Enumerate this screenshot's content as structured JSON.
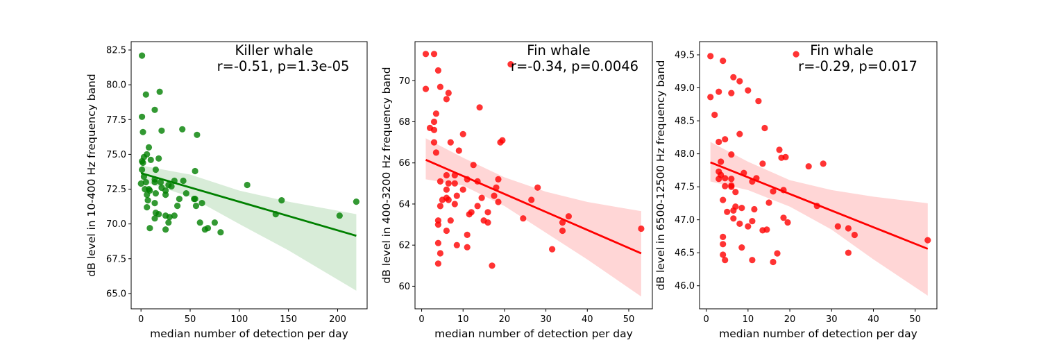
{
  "chart_data": [
    {
      "type": "scatter",
      "title": "Killer whale",
      "annotation": [
        "Killer whale",
        "r=-0.51, p=1.3e-05"
      ],
      "xlabel": "median number of detection per day",
      "ylabel": "dB level in 10-400 Hz frequency band",
      "xlim": [
        -10,
        230
      ],
      "ylim": [
        63.9,
        83.1
      ],
      "xticks": [
        0,
        50,
        100,
        150,
        200
      ],
      "xtick_labels": [
        "0",
        "50",
        "100",
        "150",
        "200"
      ],
      "yticks": [
        65.0,
        67.5,
        70.0,
        72.5,
        75.0,
        77.5,
        80.0,
        82.5
      ],
      "ytick_labels": [
        "65.0",
        "67.5",
        "70.0",
        "72.5",
        "75.0",
        "77.5",
        "80.0",
        "82.5"
      ],
      "color": "#008000",
      "band_color": "#d8ecd8",
      "points": [
        [
          1,
          82.1
        ],
        [
          5,
          79.3
        ],
        [
          19,
          79.5
        ],
        [
          14,
          78.2
        ],
        [
          1,
          77.7
        ],
        [
          2,
          76.6
        ],
        [
          21,
          76.7
        ],
        [
          42,
          76.8
        ],
        [
          57,
          76.4
        ],
        [
          8,
          75.5
        ],
        [
          6,
          75.0
        ],
        [
          3,
          74.8
        ],
        [
          1,
          74.5
        ],
        [
          2,
          74.4
        ],
        [
          10,
          74.6
        ],
        [
          18,
          74.7
        ],
        [
          15,
          73.9
        ],
        [
          1,
          73.9
        ],
        [
          55,
          73.8
        ],
        [
          3,
          73.4
        ],
        [
          14,
          73.2
        ],
        [
          14,
          73.0
        ],
        [
          0,
          72.9
        ],
        [
          5,
          73.0
        ],
        [
          20,
          73.0
        ],
        [
          34,
          73.1
        ],
        [
          43,
          73.1
        ],
        [
          28,
          72.8
        ],
        [
          31,
          72.7
        ],
        [
          108,
          72.8
        ],
        [
          4,
          72.5
        ],
        [
          8,
          72.5
        ],
        [
          9,
          72.4
        ],
        [
          21,
          72.6
        ],
        [
          25,
          72.4
        ],
        [
          6,
          72.1
        ],
        [
          25,
          72.1
        ],
        [
          15,
          72.2
        ],
        [
          46,
          72.2
        ],
        [
          7,
          71.7
        ],
        [
          39,
          71.8
        ],
        [
          54,
          71.8
        ],
        [
          55,
          71.8
        ],
        [
          143,
          71.7
        ],
        [
          219,
          71.6
        ],
        [
          14,
          71.5
        ],
        [
          37,
          71.3
        ],
        [
          56,
          71.3
        ],
        [
          62,
          71.5
        ],
        [
          6,
          71.2
        ],
        [
          15,
          70.8
        ],
        [
          18,
          70.7
        ],
        [
          25,
          70.6
        ],
        [
          29,
          70.5
        ],
        [
          34,
          70.6
        ],
        [
          14,
          70.4
        ],
        [
          137,
          70.7
        ],
        [
          202,
          70.6
        ],
        [
          28,
          70.1
        ],
        [
          60,
          70.1
        ],
        [
          75,
          70.1
        ],
        [
          9,
          69.7
        ],
        [
          25,
          69.6
        ],
        [
          65,
          69.6
        ],
        [
          68,
          69.7
        ],
        [
          81,
          69.4
        ]
      ],
      "regression": {
        "x": [
          0,
          219
        ],
        "y": [
          73.65,
          69.15
        ]
      },
      "ci_band": {
        "x": [
          0,
          50,
          100,
          150,
          219
        ],
        "upper": [
          74.2,
          73.55,
          72.4,
          71.6,
          70.7
        ],
        "lower": [
          73.1,
          71.95,
          70.0,
          68.1,
          65.2
        ]
      }
    },
    {
      "type": "scatter",
      "title": "Fin whale",
      "annotation": [
        "Fin whale",
        "r=-0.34, p=0.0046"
      ],
      "xlabel": "median number of detection per day",
      "ylabel": "dB level in 400-3200 Hz frequency band",
      "xlim": [
        -1.6,
        55.7
      ],
      "ylim": [
        58.9,
        71.9
      ],
      "xticks": [
        0,
        10,
        20,
        30,
        40,
        50
      ],
      "xtick_labels": [
        "0",
        "10",
        "20",
        "30",
        "40",
        "50"
      ],
      "yticks": [
        60,
        62,
        64,
        66,
        68,
        70
      ],
      "ytick_labels": [
        "60",
        "62",
        "64",
        "66",
        "68",
        "70"
      ],
      "color": "#ff0000",
      "band_color": "#ffd6d6",
      "points": [
        [
          1,
          71.3
        ],
        [
          3,
          71.3
        ],
        [
          4,
          70.5
        ],
        [
          4.5,
          69.7
        ],
        [
          6.5,
          69.4
        ],
        [
          6,
          69.1
        ],
        [
          1,
          69.6
        ],
        [
          21.5,
          70.8
        ],
        [
          14,
          68.7
        ],
        [
          3.5,
          68.4
        ],
        [
          3,
          68.0
        ],
        [
          2,
          67.7
        ],
        [
          3,
          67.6
        ],
        [
          10,
          67.4
        ],
        [
          19,
          67.0
        ],
        [
          19.5,
          67.1
        ],
        [
          3,
          67.0
        ],
        [
          7,
          67.0
        ],
        [
          9,
          66.6
        ],
        [
          3.5,
          66.5
        ],
        [
          12.5,
          65.9
        ],
        [
          6,
          65.4
        ],
        [
          8,
          65.4
        ],
        [
          4.5,
          65.1
        ],
        [
          11,
          65.2
        ],
        [
          13.5,
          65.1
        ],
        [
          18.5,
          65.2
        ],
        [
          6.5,
          65.0
        ],
        [
          8,
          65.0
        ],
        [
          6,
          64.7
        ],
        [
          10,
          64.7
        ],
        [
          18,
          64.8
        ],
        [
          28,
          64.8
        ],
        [
          6,
          64.3
        ],
        [
          5,
          64.2
        ],
        [
          6.5,
          64.2
        ],
        [
          8.5,
          64.4
        ],
        [
          14.5,
          64.3
        ],
        [
          17.5,
          64.4
        ],
        [
          26.5,
          64.2
        ],
        [
          4.5,
          63.9
        ],
        [
          8,
          64.0
        ],
        [
          13.5,
          63.9
        ],
        [
          18.5,
          64.1
        ],
        [
          11.5,
          63.5
        ],
        [
          12,
          63.6
        ],
        [
          16,
          63.6
        ],
        [
          34,
          63.1
        ],
        [
          35.5,
          63.4
        ],
        [
          4,
          63.2
        ],
        [
          4,
          63.0
        ],
        [
          7,
          63.2
        ],
        [
          15,
          63.2
        ],
        [
          16,
          63.1
        ],
        [
          24.5,
          63.3
        ],
        [
          6,
          62.7
        ],
        [
          11,
          62.5
        ],
        [
          34,
          62.7
        ],
        [
          53,
          62.8
        ],
        [
          4,
          62.1
        ],
        [
          8.5,
          62.0
        ],
        [
          11,
          61.9
        ],
        [
          31.5,
          61.8
        ],
        [
          4.5,
          61.6
        ],
        [
          4,
          61.1
        ],
        [
          17,
          61.0
        ]
      ],
      "regression": {
        "x": [
          1,
          53
        ],
        "y": [
          66.15,
          61.6
        ]
      },
      "ci_band": {
        "x": [
          1,
          10,
          20,
          30,
          40,
          53
        ],
        "upper": [
          67.2,
          66.25,
          65.3,
          64.6,
          64.1,
          63.65
        ],
        "lower": [
          65.2,
          64.9,
          63.9,
          62.6,
          61.3,
          59.5
        ]
      }
    },
    {
      "type": "scatter",
      "title": "Fin whale",
      "annotation": [
        "Fin whale",
        "r=-0.29, p=0.017"
      ],
      "xlabel": "median number of detection per day",
      "ylabel": "dB level in 6500-12500 Hz frequency band",
      "xlim": [
        -1.6,
        55.2
      ],
      "ylim": [
        45.65,
        49.7
      ],
      "xticks": [
        0,
        10,
        20,
        30,
        40,
        50
      ],
      "xtick_labels": [
        "0",
        "10",
        "20",
        "30",
        "40",
        "50"
      ],
      "yticks": [
        46.0,
        46.5,
        47.0,
        47.5,
        48.0,
        48.5,
        49.0,
        49.5
      ],
      "ytick_labels": [
        "46.0",
        "46.5",
        "47.0",
        "47.5",
        "48.0",
        "48.5",
        "49.0",
        "49.5"
      ],
      "color": "#ff0000",
      "band_color": "#ffd6d6",
      "points": [
        [
          1,
          49.48
        ],
        [
          4,
          49.41
        ],
        [
          21.5,
          49.51
        ],
        [
          6.5,
          49.16
        ],
        [
          8,
          49.1
        ],
        [
          3,
          48.94
        ],
        [
          6,
          48.92
        ],
        [
          10,
          48.96
        ],
        [
          1,
          48.86
        ],
        [
          12.5,
          48.8
        ],
        [
          2,
          48.59
        ],
        [
          14,
          48.39
        ],
        [
          8,
          48.3
        ],
        [
          3,
          48.18
        ],
        [
          4.5,
          48.22
        ],
        [
          17.5,
          48.06
        ],
        [
          6,
          47.99
        ],
        [
          18,
          47.94
        ],
        [
          19,
          47.95
        ],
        [
          3.5,
          47.88
        ],
        [
          13.5,
          47.85
        ],
        [
          24.5,
          47.81
        ],
        [
          28,
          47.85
        ],
        [
          3,
          47.73
        ],
        [
          3.5,
          47.68
        ],
        [
          9,
          47.71
        ],
        [
          3,
          47.62
        ],
        [
          4.5,
          47.63
        ],
        [
          6,
          47.62
        ],
        [
          12,
          47.63
        ],
        [
          11,
          47.58
        ],
        [
          4.5,
          47.51
        ],
        [
          6,
          47.52
        ],
        [
          6,
          47.5
        ],
        [
          7,
          47.42
        ],
        [
          16,
          47.43
        ],
        [
          18.5,
          47.45
        ],
        [
          4,
          47.3
        ],
        [
          15,
          47.26
        ],
        [
          26.5,
          47.21
        ],
        [
          7,
          47.2
        ],
        [
          8.5,
          47.18
        ],
        [
          11.5,
          47.16
        ],
        [
          6.5,
          47.14
        ],
        [
          5,
          47.12
        ],
        [
          6.5,
          47.02
        ],
        [
          11,
          46.98
        ],
        [
          18.5,
          47.03
        ],
        [
          8,
          46.94
        ],
        [
          10,
          46.9
        ],
        [
          19.5,
          46.96
        ],
        [
          31.5,
          46.9
        ],
        [
          13.5,
          46.84
        ],
        [
          14.5,
          46.85
        ],
        [
          34,
          46.87
        ],
        [
          35.5,
          46.77
        ],
        [
          4,
          46.74
        ],
        [
          4,
          46.63
        ],
        [
          8.5,
          46.58
        ],
        [
          53,
          46.69
        ],
        [
          4,
          46.47
        ],
        [
          17,
          46.49
        ],
        [
          34,
          46.5
        ],
        [
          4.5,
          46.39
        ],
        [
          11,
          46.39
        ],
        [
          16,
          46.36
        ]
      ],
      "regression": {
        "x": [
          1,
          53
        ],
        "y": [
          47.87,
          46.56
        ]
      },
      "ci_band": {
        "x": [
          1,
          10,
          20,
          30,
          40,
          53
        ],
        "upper": [
          48.18,
          47.88,
          47.6,
          47.45,
          47.35,
          47.25
        ],
        "lower": [
          47.58,
          47.45,
          47.2,
          46.85,
          46.4,
          45.85
        ]
      }
    }
  ]
}
